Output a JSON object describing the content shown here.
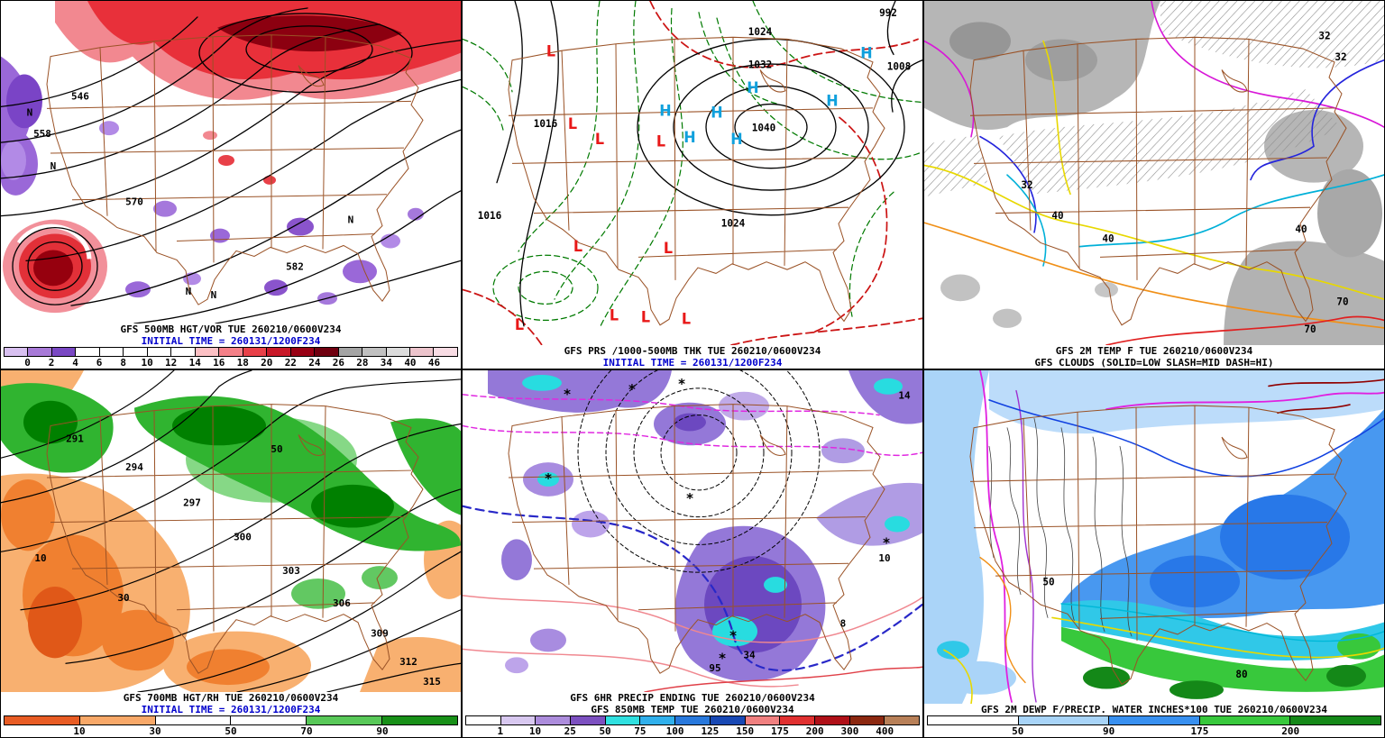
{
  "theme": {
    "background": "#ffffff",
    "caption_color": "#000000",
    "init_time_color": "#0000cc",
    "state_border_color": "#9a5226"
  },
  "panels": {
    "vor500": {
      "caption": "GFS 500MB HGT/VOR TUE 260210/0600V234",
      "init": "INITIAL TIME = 260131/1200F234",
      "colorbar": {
        "labels": [
          "0",
          "2",
          "4",
          "6",
          "8",
          "10",
          "12",
          "14",
          "16",
          "18",
          "20",
          "22",
          "24",
          "26",
          "28",
          "34",
          "40",
          "46"
        ],
        "colors": [
          "#d8c0f0",
          "#a87ad8",
          "#7a48c4",
          "#ffffff",
          "#ffffff",
          "#ffffff",
          "#ffffff",
          "#ffffff",
          "#fcc0c4",
          "#f48088",
          "#e84048",
          "#c81828",
          "#980014",
          "#700010",
          "#a4a4a4",
          "#c0c0c0",
          "#dcdcdc",
          "#ecc4cc",
          "#f8dce4"
        ]
      },
      "labels": {
        "l546": "546",
        "l558": "558",
        "l570": "570",
        "l582": "582",
        "neg": "N"
      }
    },
    "thk": {
      "caption": "GFS PRS /1000-500MB THK TUE 260210/0600V234",
      "init": "INITIAL TIME = 260131/1200F234",
      "labels": {
        "high": "H",
        "low": "L",
        "p992": "992",
        "p1008": "1008",
        "p1016": "1016",
        "p1024": "1024",
        "p1032": "1032",
        "p1040": "1040"
      }
    },
    "t2m": {
      "caption": "GFS 2M TEMP F TUE 260210/0600V234",
      "caption2": "GFS CLOUDS (SOLID=LOW SLASH=MID DASH=HI)",
      "labels": {
        "t32": "32",
        "t40": "40",
        "t70": "70"
      }
    },
    "rh700": {
      "caption": "GFS 700MB HGT/RH TUE 260210/0600V234",
      "init": "INITIAL TIME = 260131/1200F234",
      "colorbar": {
        "labels": [
          "10",
          "30",
          "50",
          "70",
          "90"
        ],
        "colors": [
          "#e85c24",
          "#f8a868",
          "#ffffff",
          "#ffffff",
          "#58c858",
          "#189018"
        ]
      },
      "labels": {
        "h291": "291",
        "h294": "294",
        "h297": "297",
        "h300": "300",
        "h303": "303",
        "h306": "306",
        "h309": "309",
        "h312": "312",
        "h315": "315",
        "rh10": "10",
        "rh30": "30",
        "rh50": "50"
      }
    },
    "precip": {
      "caption": "GFS 6HR PRECIP ENDING TUE 260210/0600V234",
      "caption2": "GFS 850MB TEMP TUE 260210/0600V234",
      "colorbar": {
        "labels": [
          "1",
          "10",
          "25",
          "50",
          "75",
          "100",
          "125",
          "150",
          "175",
          "200",
          "300",
          "400"
        ],
        "colors": [
          "#ffffff",
          "#d8c8f0",
          "#ac8cdc",
          "#7c50c0",
          "#30e0e0",
          "#30b0ec",
          "#2878dc",
          "#1848b4",
          "#f08080",
          "#e03030",
          "#b01018",
          "#8c2810",
          "#b88058"
        ]
      },
      "labels": {
        "snow": "*",
        "v8": "8",
        "v10": "10",
        "v14": "14",
        "v34": "34",
        "v95": "95"
      }
    },
    "dewp": {
      "caption": "GFS 2M DEWP F/PRECIP. WATER INCHES*100 TUE 260210/0600V234",
      "colorbar": {
        "labels": [
          "50",
          "90",
          "175",
          "200"
        ],
        "colors": [
          "#ffffff",
          "#a8d4f8",
          "#3890f0",
          "#38c83c",
          "#148818"
        ]
      },
      "labels": {
        "d50": "50",
        "d80": "80"
      }
    }
  }
}
